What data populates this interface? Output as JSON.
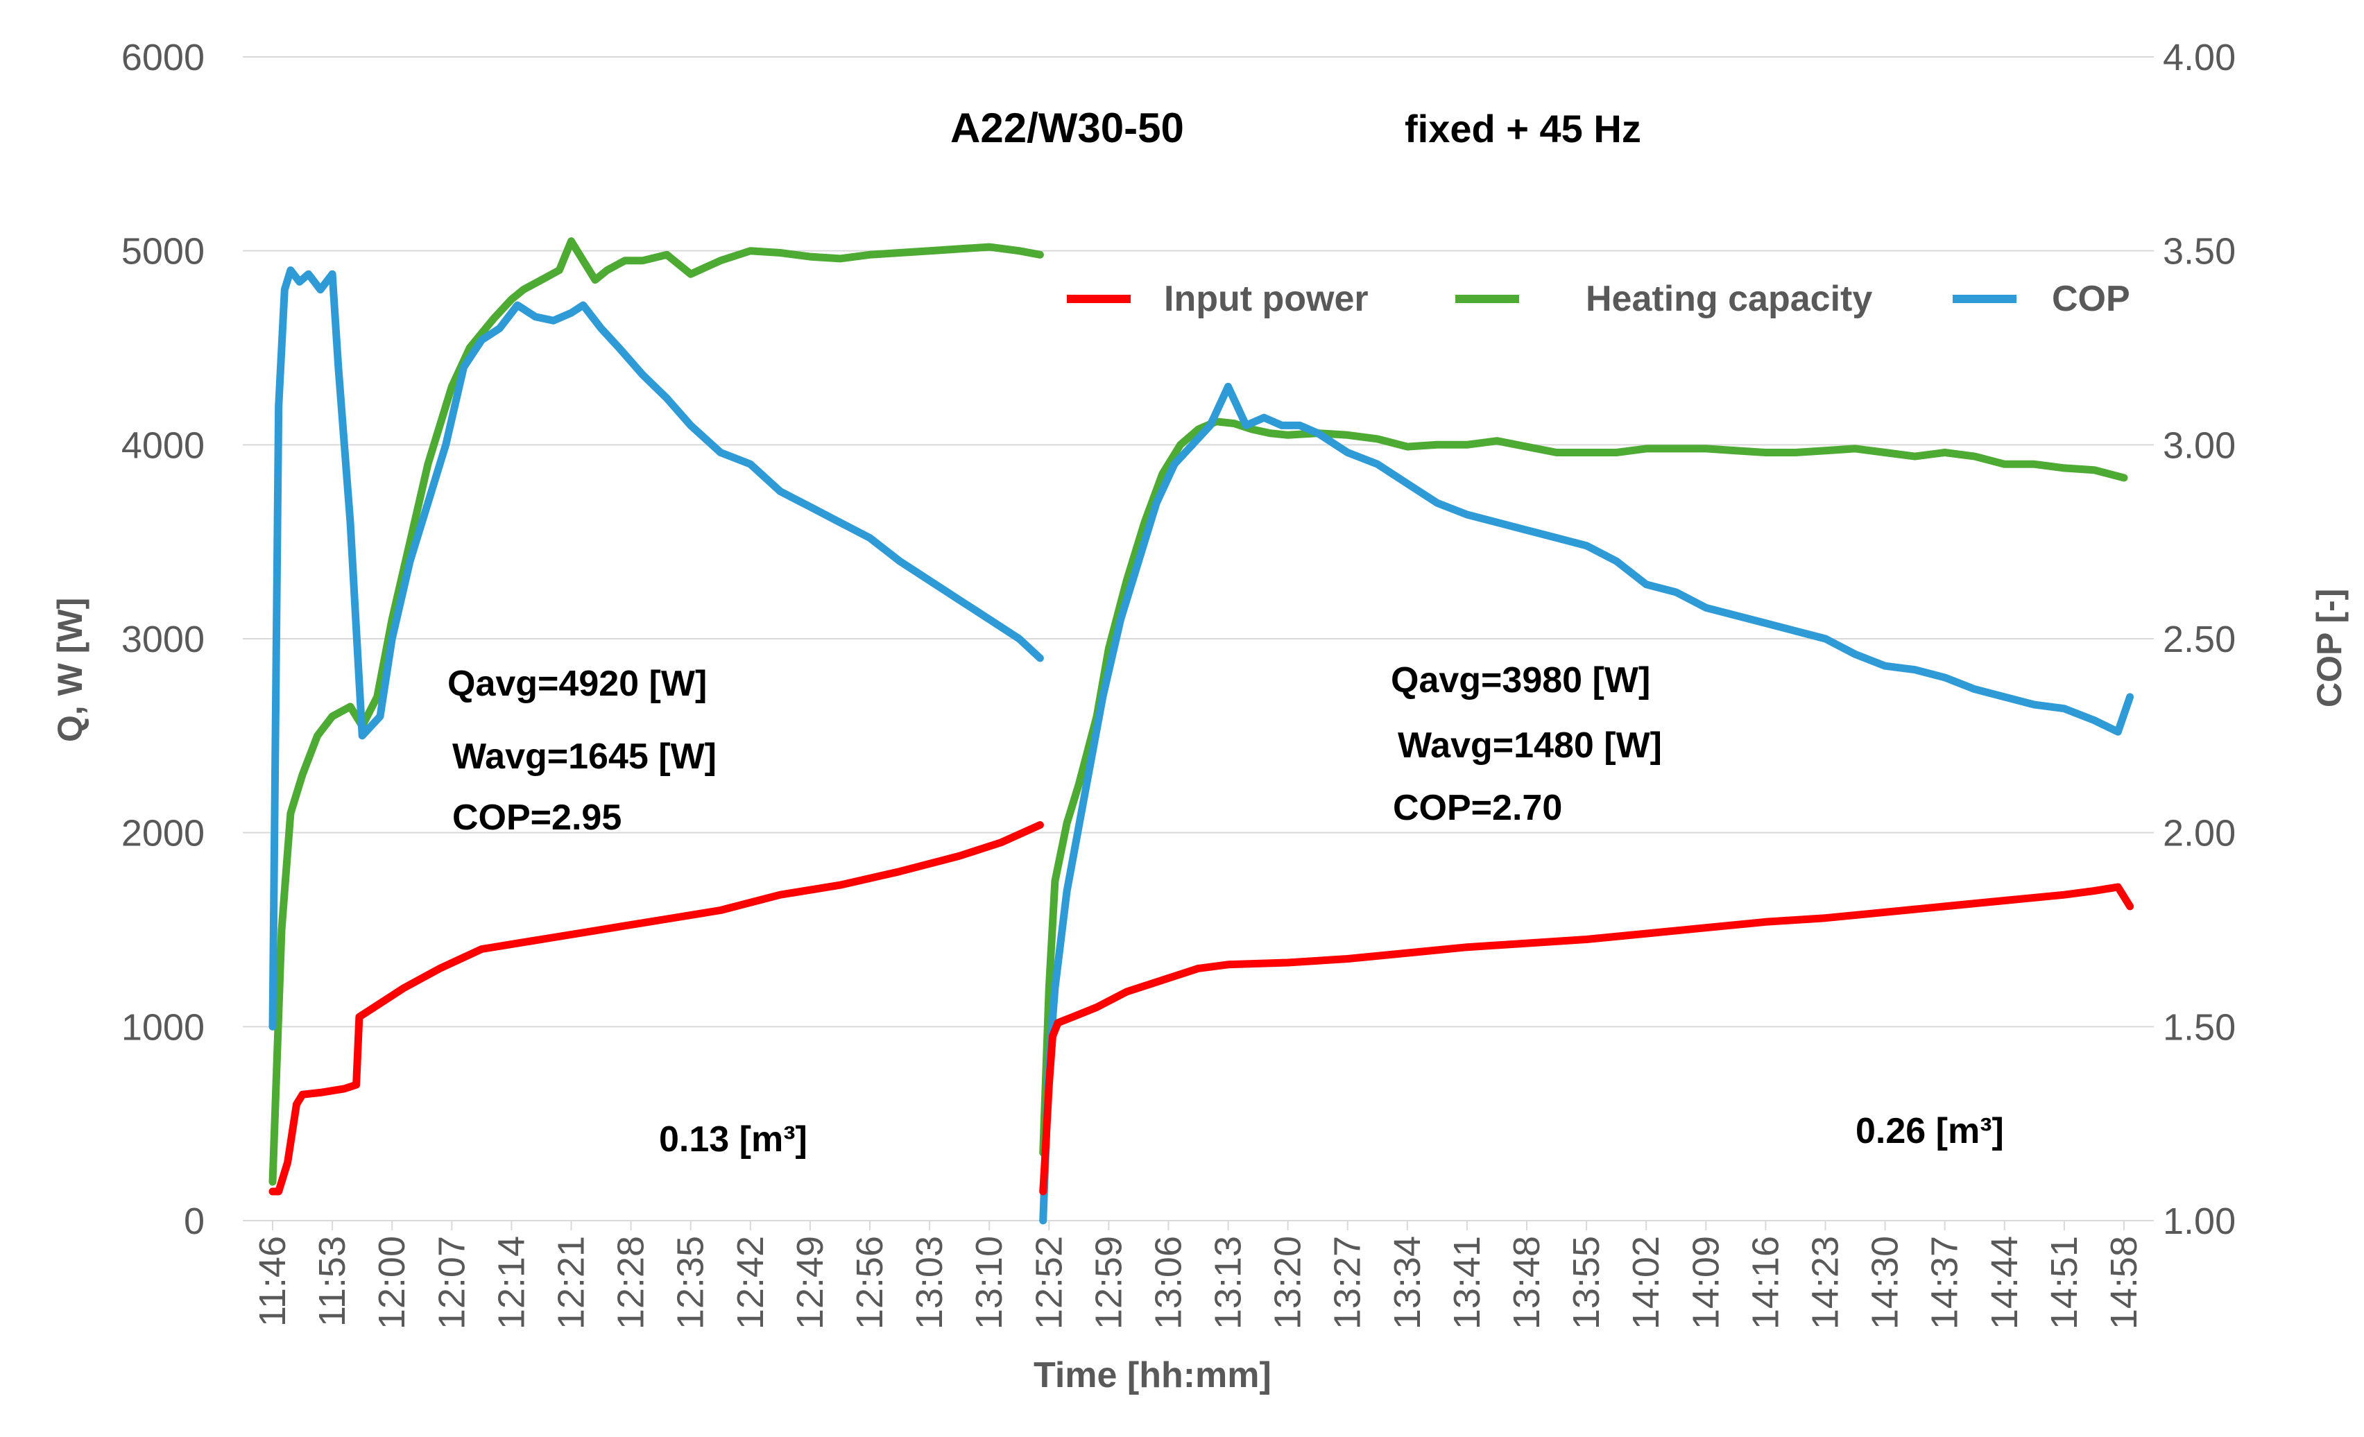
{
  "chart_data": {
    "type": "line",
    "title": "A22/W30-50",
    "subtitle": "fixed  + 45 Hz",
    "xlabel": "Time  [hh:mm]",
    "ylabel": "Q, W  [W]",
    "y2label": "COP  [-]",
    "ylim": [
      0,
      6000
    ],
    "y2lim": [
      1.0,
      4.0
    ],
    "yticks": [
      "0",
      "1000",
      "2000",
      "3000",
      "4000",
      "5000",
      "6000"
    ],
    "y2ticks": [
      "1.00",
      "1.50",
      "2.00",
      "2.50",
      "3.00",
      "3.50",
      "4.00"
    ],
    "x_ticks": [
      "11:46",
      "11:53",
      "12:00",
      "12:07",
      "12:14",
      "12:21",
      "12:28",
      "12:35",
      "12:42",
      "12:49",
      "12:56",
      "13:03",
      "13:10",
      "12:52",
      "12:59",
      "13:06",
      "13:13",
      "13:20",
      "13:27",
      "13:34",
      "13:41",
      "13:48",
      "13:55",
      "14:02",
      "14:09",
      "14:16",
      "14:23",
      "14:30",
      "14:37",
      "14:44",
      "14:51",
      "14:58"
    ],
    "grid": "horizontal",
    "legend_position": "top-right",
    "colors": {
      "input_power": "#ff0000",
      "heating_capacity": "#4daa32",
      "cop": "#2f9bd6",
      "grid": "#d9d9d9",
      "text": "#595959"
    },
    "legend": [
      "Input power",
      "Heating capacity",
      "COP"
    ],
    "series": [
      {
        "name": "Input power",
        "axis": "left",
        "color": "#ff0000",
        "x": [
          0,
          0.1,
          0.25,
          0.4,
          0.5,
          0.8,
          1.2,
          1.4,
          1.45,
          1.7,
          2.2,
          2.8,
          3.5,
          4.5,
          5.5,
          6.5,
          7.5,
          8.5,
          9.5,
          10.5,
          11.5,
          12.2,
          12.85,
          null,
          12.9,
          12.93,
          13.0,
          13.06,
          13.15,
          13.4,
          13.8,
          14.3,
          15.0,
          15.5,
          16.0,
          17.0,
          18.0,
          19.0,
          20.0,
          21.0,
          22.0,
          23.0,
          24.0,
          25.0,
          26.0,
          27.0,
          28.0,
          29.0,
          30.0,
          30.5,
          30.9,
          31.1
        ],
        "y": [
          150,
          150,
          300,
          600,
          650,
          660,
          680,
          700,
          1050,
          1100,
          1200,
          1300,
          1400,
          1450,
          1500,
          1550,
          1600,
          1680,
          1730,
          1800,
          1880,
          1950,
          2040,
          null,
          150,
          300,
          700,
          950,
          1020,
          1050,
          1100,
          1180,
          1250,
          1300,
          1320,
          1330,
          1350,
          1380,
          1410,
          1430,
          1450,
          1480,
          1510,
          1540,
          1560,
          1590,
          1620,
          1650,
          1680,
          1700,
          1720,
          1620
        ]
      },
      {
        "name": "Heating capacity",
        "axis": "left",
        "color": "#4daa32",
        "x": [
          0,
          0.15,
          0.3,
          0.5,
          0.75,
          1.0,
          1.3,
          1.5,
          1.75,
          2.0,
          2.3,
          2.6,
          3.0,
          3.3,
          3.7,
          4.0,
          4.2,
          4.5,
          4.8,
          5.0,
          5.2,
          5.4,
          5.6,
          5.9,
          6.2,
          6.6,
          7.0,
          7.5,
          8.0,
          8.5,
          9.0,
          9.5,
          10.0,
          10.5,
          11.0,
          11.5,
          12.0,
          12.5,
          12.85,
          null,
          12.9,
          13.0,
          13.1,
          13.3,
          13.5,
          13.8,
          14.0,
          14.3,
          14.6,
          14.9,
          15.2,
          15.5,
          15.8,
          16.1,
          16.4,
          16.7,
          17.0,
          17.5,
          18.0,
          18.5,
          19.0,
          19.5,
          20.0,
          20.5,
          21.0,
          21.5,
          22.0,
          22.5,
          23.0,
          23.5,
          24.0,
          24.5,
          25.0,
          25.5,
          26.0,
          26.5,
          27.0,
          27.5,
          28.0,
          28.5,
          29.0,
          29.5,
          30.0,
          30.5,
          31.0
        ],
        "y": [
          200,
          1500,
          2100,
          2300,
          2500,
          2600,
          2650,
          2550,
          2700,
          3100,
          3500,
          3900,
          4300,
          4500,
          4650,
          4750,
          4800,
          4850,
          4900,
          5050,
          4950,
          4850,
          4900,
          4950,
          4950,
          4980,
          4880,
          4950,
          5000,
          4990,
          4970,
          4960,
          4980,
          4990,
          5000,
          5010,
          5020,
          5000,
          4980,
          null,
          350,
          1200,
          1750,
          2050,
          2250,
          2600,
          2950,
          3300,
          3600,
          3850,
          4000,
          4080,
          4120,
          4110,
          4080,
          4060,
          4050,
          4060,
          4050,
          4030,
          3990,
          4000,
          4000,
          4020,
          3990,
          3960,
          3960,
          3960,
          3980,
          3980,
          3980,
          3970,
          3960,
          3960,
          3970,
          3980,
          3960,
          3940,
          3960,
          3940,
          3900,
          3900,
          3880,
          3870,
          3830
        ]
      },
      {
        "name": "COP",
        "axis": "right",
        "color": "#2f9bd6",
        "x": [
          0,
          0.1,
          0.2,
          0.3,
          0.45,
          0.6,
          0.8,
          1.0,
          1.1,
          1.3,
          1.5,
          1.8,
          2.0,
          2.3,
          2.6,
          2.9,
          3.2,
          3.5,
          3.8,
          4.1,
          4.4,
          4.7,
          5.0,
          5.2,
          5.5,
          5.8,
          6.2,
          6.6,
          7.0,
          7.5,
          8.0,
          8.5,
          9.0,
          9.5,
          10.0,
          10.5,
          11.0,
          11.5,
          12.0,
          12.5,
          12.85,
          null,
          12.9,
          13.0,
          13.1,
          13.3,
          13.6,
          13.9,
          14.2,
          14.5,
          14.8,
          15.1,
          15.4,
          15.7,
          16.0,
          16.3,
          16.6,
          16.9,
          17.2,
          17.5,
          18.0,
          18.5,
          19.0,
          19.5,
          20.0,
          20.5,
          21.0,
          21.5,
          22.0,
          22.5,
          23.0,
          23.5,
          24.0,
          24.5,
          25.0,
          25.5,
          26.0,
          26.5,
          27.0,
          27.5,
          28.0,
          28.5,
          29.0,
          29.5,
          30.0,
          30.5,
          30.9,
          31.1
        ],
        "y": [
          1.5,
          3.1,
          3.4,
          3.45,
          3.42,
          3.44,
          3.4,
          3.44,
          3.2,
          2.8,
          2.25,
          2.3,
          2.5,
          2.7,
          2.85,
          3.0,
          3.2,
          3.27,
          3.3,
          3.36,
          3.33,
          3.32,
          3.34,
          3.36,
          3.3,
          3.25,
          3.18,
          3.12,
          3.05,
          2.98,
          2.95,
          2.88,
          2.84,
          2.8,
          2.76,
          2.7,
          2.65,
          2.6,
          2.55,
          2.5,
          2.45,
          null,
          1.0,
          1.4,
          1.6,
          1.85,
          2.1,
          2.35,
          2.55,
          2.7,
          2.85,
          2.95,
          3.0,
          3.05,
          3.15,
          3.05,
          3.07,
          3.05,
          3.05,
          3.03,
          2.98,
          2.95,
          2.9,
          2.85,
          2.82,
          2.8,
          2.78,
          2.76,
          2.74,
          2.7,
          2.64,
          2.62,
          2.58,
          2.56,
          2.54,
          2.52,
          2.5,
          2.46,
          2.43,
          2.42,
          2.4,
          2.37,
          2.35,
          2.33,
          2.32,
          2.29,
          2.26,
          2.35
        ]
      }
    ],
    "annotations": [
      {
        "name": "left-qavg",
        "text": "Qavg=4920 [W]"
      },
      {
        "name": "left-wavg",
        "text": "Wavg=1645 [W]"
      },
      {
        "name": "left-cop",
        "text": "COP=2.95"
      },
      {
        "name": "left-volume",
        "text": "0.13 [m³]"
      },
      {
        "name": "right-qavg",
        "text": "Qavg=3980 [W]"
      },
      {
        "name": "right-wavg",
        "text": "Wavg=1480 [W]"
      },
      {
        "name": "right-cop",
        "text": "COP=2.70"
      },
      {
        "name": "right-volume",
        "text": "0.26 [m³]"
      }
    ]
  }
}
